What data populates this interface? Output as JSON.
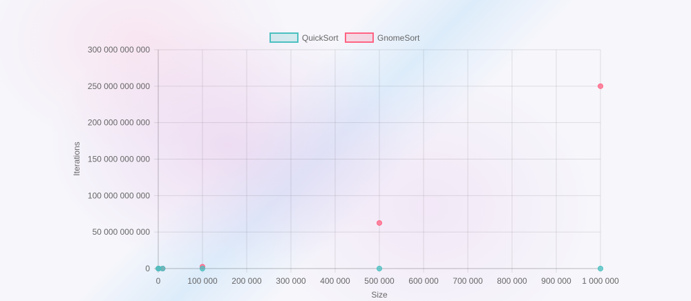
{
  "chart_data": {
    "type": "scatter",
    "xlabel": "Size",
    "ylabel": "Iterations",
    "xlim": [
      0,
      1000000
    ],
    "ylim": [
      0,
      300000000000
    ],
    "x_ticks": [
      0,
      100000,
      200000,
      300000,
      400000,
      500000,
      600000,
      700000,
      800000,
      900000,
      1000000
    ],
    "x_tick_labels": [
      "0",
      "100 000",
      "200 000",
      "300 000",
      "400 000",
      "500 000",
      "600 000",
      "700 000",
      "800 000",
      "900 000",
      "1 000 000"
    ],
    "y_ticks": [
      0,
      50000000000,
      100000000000,
      150000000000,
      200000000000,
      250000000000,
      300000000000
    ],
    "y_tick_labels": [
      "0",
      "50 000 000 000",
      "100 000 000 000",
      "150 000 000 000",
      "200 000 000 000",
      "250 000 000 000",
      "300 000 000 000"
    ],
    "grid": true,
    "legend_position": "top",
    "series": [
      {
        "name": "QuickSort",
        "border_color": "#4bc0c0",
        "fill_color": "rgba(75, 192, 192, 0.2)",
        "points": [
          {
            "x": 100,
            "y": 0
          },
          {
            "x": 1000,
            "y": 0
          },
          {
            "x": 10000,
            "y": 0
          },
          {
            "x": 100000,
            "y": 0
          },
          {
            "x": 500000,
            "y": 0
          },
          {
            "x": 1000000,
            "y": 0
          }
        ]
      },
      {
        "name": "GnomeSort",
        "border_color": "#ff6384",
        "fill_color": "rgba(255, 99, 132, 0.2)",
        "points": [
          {
            "x": 100,
            "y": 0
          },
          {
            "x": 1000,
            "y": 0
          },
          {
            "x": 10000,
            "y": 0
          },
          {
            "x": 100000,
            "y": 2500000000
          },
          {
            "x": 500000,
            "y": 62500000000
          },
          {
            "x": 1000000,
            "y": 250000000000
          }
        ]
      }
    ]
  }
}
